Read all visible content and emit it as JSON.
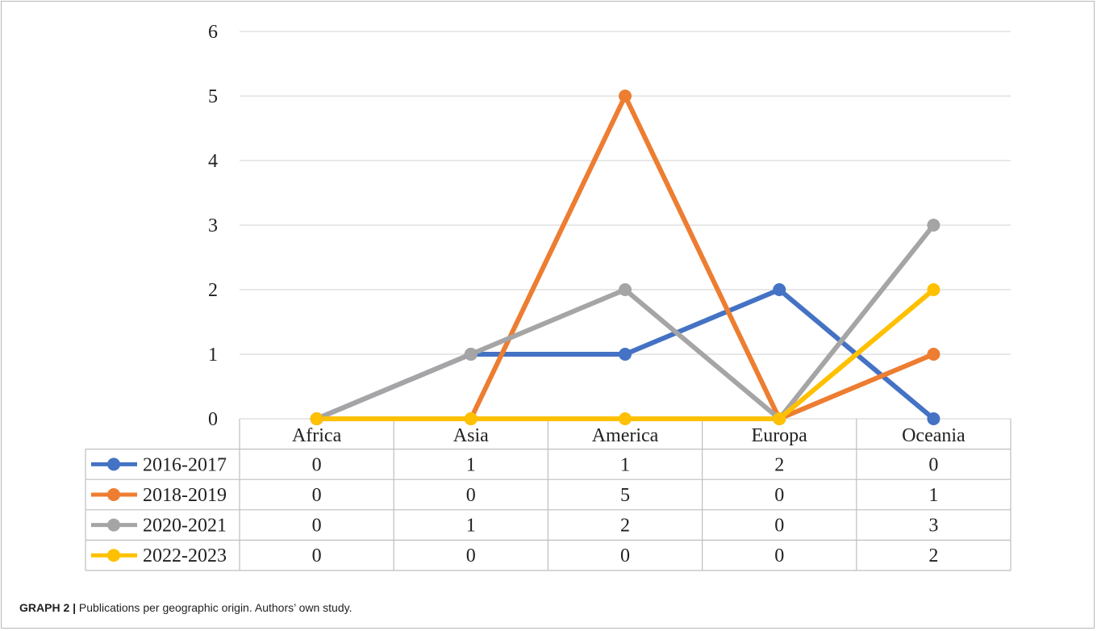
{
  "chart_data": {
    "type": "line",
    "categories": [
      "Africa",
      "Asia",
      "America",
      "Europa",
      "Oceania"
    ],
    "series": [
      {
        "name": "2016-2017",
        "values": [
          0,
          1,
          1,
          2,
          0
        ],
        "color": "#4472C4"
      },
      {
        "name": "2018-2019",
        "values": [
          0,
          0,
          5,
          0,
          1
        ],
        "color": "#ED7D31"
      },
      {
        "name": "2020-2021",
        "values": [
          0,
          1,
          2,
          0,
          3
        ],
        "color": "#A5A5A5"
      },
      {
        "name": "2022-2023",
        "values": [
          0,
          0,
          0,
          0,
          2
        ],
        "color": "#FFC000"
      }
    ],
    "ylim": [
      0,
      6
    ],
    "yticks": [
      0,
      1,
      2,
      3,
      4,
      5,
      6
    ],
    "grid": true,
    "legend": "data-table-left"
  },
  "caption": {
    "label": "GRAPH 2 |",
    "text": " Publications per geographic origin. Authors’ own study."
  }
}
